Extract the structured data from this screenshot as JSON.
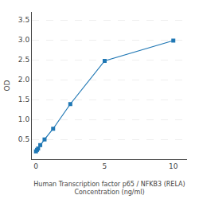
{
  "chart_data": {
    "type": "line",
    "xlabel": "Human Transcription factor p65 / NFKB3 (RELA)\nConcentration (ng/ml)",
    "ylabel": "OD",
    "x": [
      0.0,
      0.078125,
      0.15625,
      0.3125,
      0.625,
      1.25,
      2.5,
      5.0,
      10.0
    ],
    "values": [
      0.197,
      0.234,
      0.268,
      0.354,
      0.496,
      0.765,
      1.385,
      2.47,
      2.98
    ],
    "marker": "square",
    "xlim": [
      -0.3,
      11.0
    ],
    "xticks": [
      0,
      5,
      10
    ],
    "ylim": [
      0.0,
      3.7
    ],
    "yticks": [
      0.5,
      {
        "value": 1.0,
        "label": "1.0"
      },
      1.5,
      {
        "value": 2.0,
        "label": "2.0"
      },
      2.5,
      {
        "value": 3.0,
        "label": "3.0"
      },
      3.5
    ],
    "grid": true
  }
}
